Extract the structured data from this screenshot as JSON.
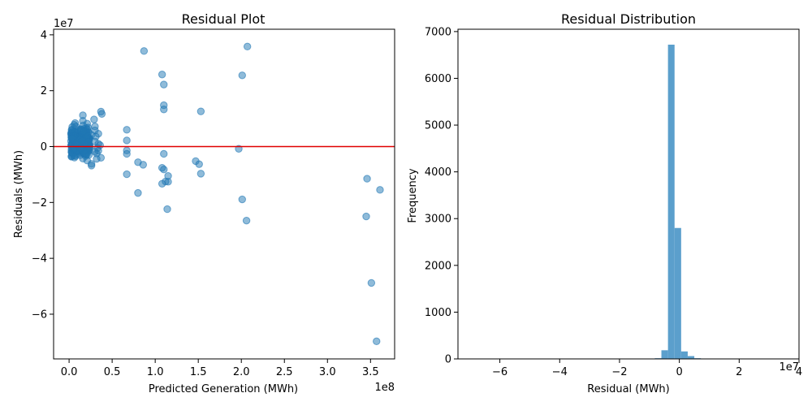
{
  "chart_data": [
    {
      "type": "scatter",
      "title": "Residual Plot",
      "xlabel": "Predicted Generation (MWh)",
      "ylabel": "Residuals (MWh)",
      "x_offset_label": "1e8",
      "y_offset_label": "1e7",
      "x_ticks": [
        0.0,
        0.5,
        1.0,
        1.5,
        2.0,
        2.5,
        3.0,
        3.5
      ],
      "x_tick_labels": [
        "0.0",
        "0.5",
        "1.0",
        "1.5",
        "2.0",
        "2.5",
        "3.0",
        "3.5"
      ],
      "y_ticks": [
        -6,
        -4,
        -2,
        0,
        2,
        4
      ],
      "y_tick_labels": [
        "−6",
        "−4",
        "−2",
        "0",
        "2",
        "4"
      ],
      "xlim": [
        -0.18,
        3.78
      ],
      "ylim": [
        -7.6,
        4.2
      ],
      "reference_line": {
        "y": 0,
        "color": "#e00000"
      },
      "point_color": "#1f77b4",
      "points": [
        [
          0.87,
          3.42
        ],
        [
          2.07,
          3.58
        ],
        [
          1.08,
          2.58
        ],
        [
          2.01,
          2.55
        ],
        [
          1.1,
          2.22
        ],
        [
          1.1,
          1.48
        ],
        [
          1.1,
          1.33
        ],
        [
          1.53,
          1.26
        ],
        [
          0.37,
          1.25
        ],
        [
          0.38,
          1.17
        ],
        [
          0.16,
          1.12
        ],
        [
          0.29,
          0.97
        ],
        [
          0.16,
          0.92
        ],
        [
          0.07,
          0.84
        ],
        [
          0.21,
          0.82
        ],
        [
          0.06,
          0.78
        ],
        [
          0.3,
          0.72
        ],
        [
          0.22,
          0.68
        ],
        [
          0.21,
          0.62
        ],
        [
          0.3,
          0.58
        ],
        [
          0.67,
          0.6
        ],
        [
          0.2,
          0.52
        ],
        [
          0.34,
          0.46
        ],
        [
          0.26,
          0.42
        ],
        [
          0.31,
          0.36
        ],
        [
          0.67,
          0.22
        ],
        [
          0.3,
          0.18
        ],
        [
          0.34,
          0.1
        ],
        [
          0.36,
          0.05
        ],
        [
          0.33,
          -0.05
        ],
        [
          0.34,
          -0.15
        ],
        [
          0.3,
          -0.18
        ],
        [
          0.67,
          -0.14
        ],
        [
          0.67,
          -0.26
        ],
        [
          1.97,
          -0.08
        ],
        [
          1.1,
          -0.26
        ],
        [
          0.32,
          -0.25
        ],
        [
          0.37,
          -0.4
        ],
        [
          0.32,
          -0.44
        ],
        [
          0.26,
          -0.62
        ],
        [
          0.26,
          -0.68
        ],
        [
          0.21,
          -0.5
        ],
        [
          0.8,
          -0.56
        ],
        [
          0.86,
          -0.65
        ],
        [
          1.47,
          -0.52
        ],
        [
          1.51,
          -0.63
        ],
        [
          1.08,
          -0.76
        ],
        [
          1.1,
          -0.82
        ],
        [
          1.53,
          -0.97
        ],
        [
          1.15,
          -1.05
        ],
        [
          0.67,
          -0.99
        ],
        [
          1.12,
          -1.25
        ],
        [
          1.15,
          -1.26
        ],
        [
          1.08,
          -1.33
        ],
        [
          3.46,
          -1.15
        ],
        [
          3.61,
          -1.55
        ],
        [
          0.8,
          -1.66
        ],
        [
          2.01,
          -1.89
        ],
        [
          1.14,
          -2.24
        ],
        [
          3.45,
          -2.5
        ],
        [
          2.06,
          -2.65
        ],
        [
          3.51,
          -4.88
        ],
        [
          3.57,
          -6.97
        ],
        [
          0.2,
          0.3
        ],
        [
          0.18,
          0.1
        ],
        [
          0.22,
          -0.1
        ],
        [
          0.19,
          -0.25
        ],
        [
          0.23,
          -0.3
        ],
        [
          0.15,
          0.2
        ],
        [
          0.13,
          -0.05
        ],
        [
          0.21,
          0.4
        ],
        [
          0.24,
          -0.02
        ],
        [
          0.17,
          0.55
        ]
      ],
      "dense_cluster": {
        "x_range": [
          0.02,
          0.24
        ],
        "y_range": [
          -0.55,
          0.85
        ]
      }
    },
    {
      "type": "histogram",
      "title": "Residual Distribution",
      "xlabel": "Residual (MWh)",
      "ylabel": "Frequency",
      "x_offset_label": "1e7",
      "x_ticks": [
        -6,
        -4,
        -2,
        0,
        2,
        4
      ],
      "x_tick_labels": [
        "−6",
        "−4",
        "−2",
        "0",
        "2",
        "4"
      ],
      "y_ticks": [
        0,
        1000,
        2000,
        3000,
        4000,
        5000,
        6000,
        7000
      ],
      "y_tick_labels": [
        "0",
        "1000",
        "2000",
        "3000",
        "4000",
        "5000",
        "6000",
        "7000"
      ],
      "xlim": [
        -7.4,
        4.0
      ],
      "ylim": [
        0,
        7050
      ],
      "bar_color": "#5b9fcc",
      "bins": [
        {
          "x0": -0.82,
          "x1": -0.6,
          "count": 15
        },
        {
          "x0": -0.6,
          "x1": -0.38,
          "count": 185
        },
        {
          "x0": -0.38,
          "x1": -0.16,
          "count": 6720
        },
        {
          "x0": -0.16,
          "x1": 0.06,
          "count": 2800
        },
        {
          "x0": 0.06,
          "x1": 0.28,
          "count": 160
        },
        {
          "x0": 0.28,
          "x1": 0.5,
          "count": 60
        },
        {
          "x0": 0.5,
          "x1": 0.72,
          "count": 15
        }
      ]
    }
  ]
}
